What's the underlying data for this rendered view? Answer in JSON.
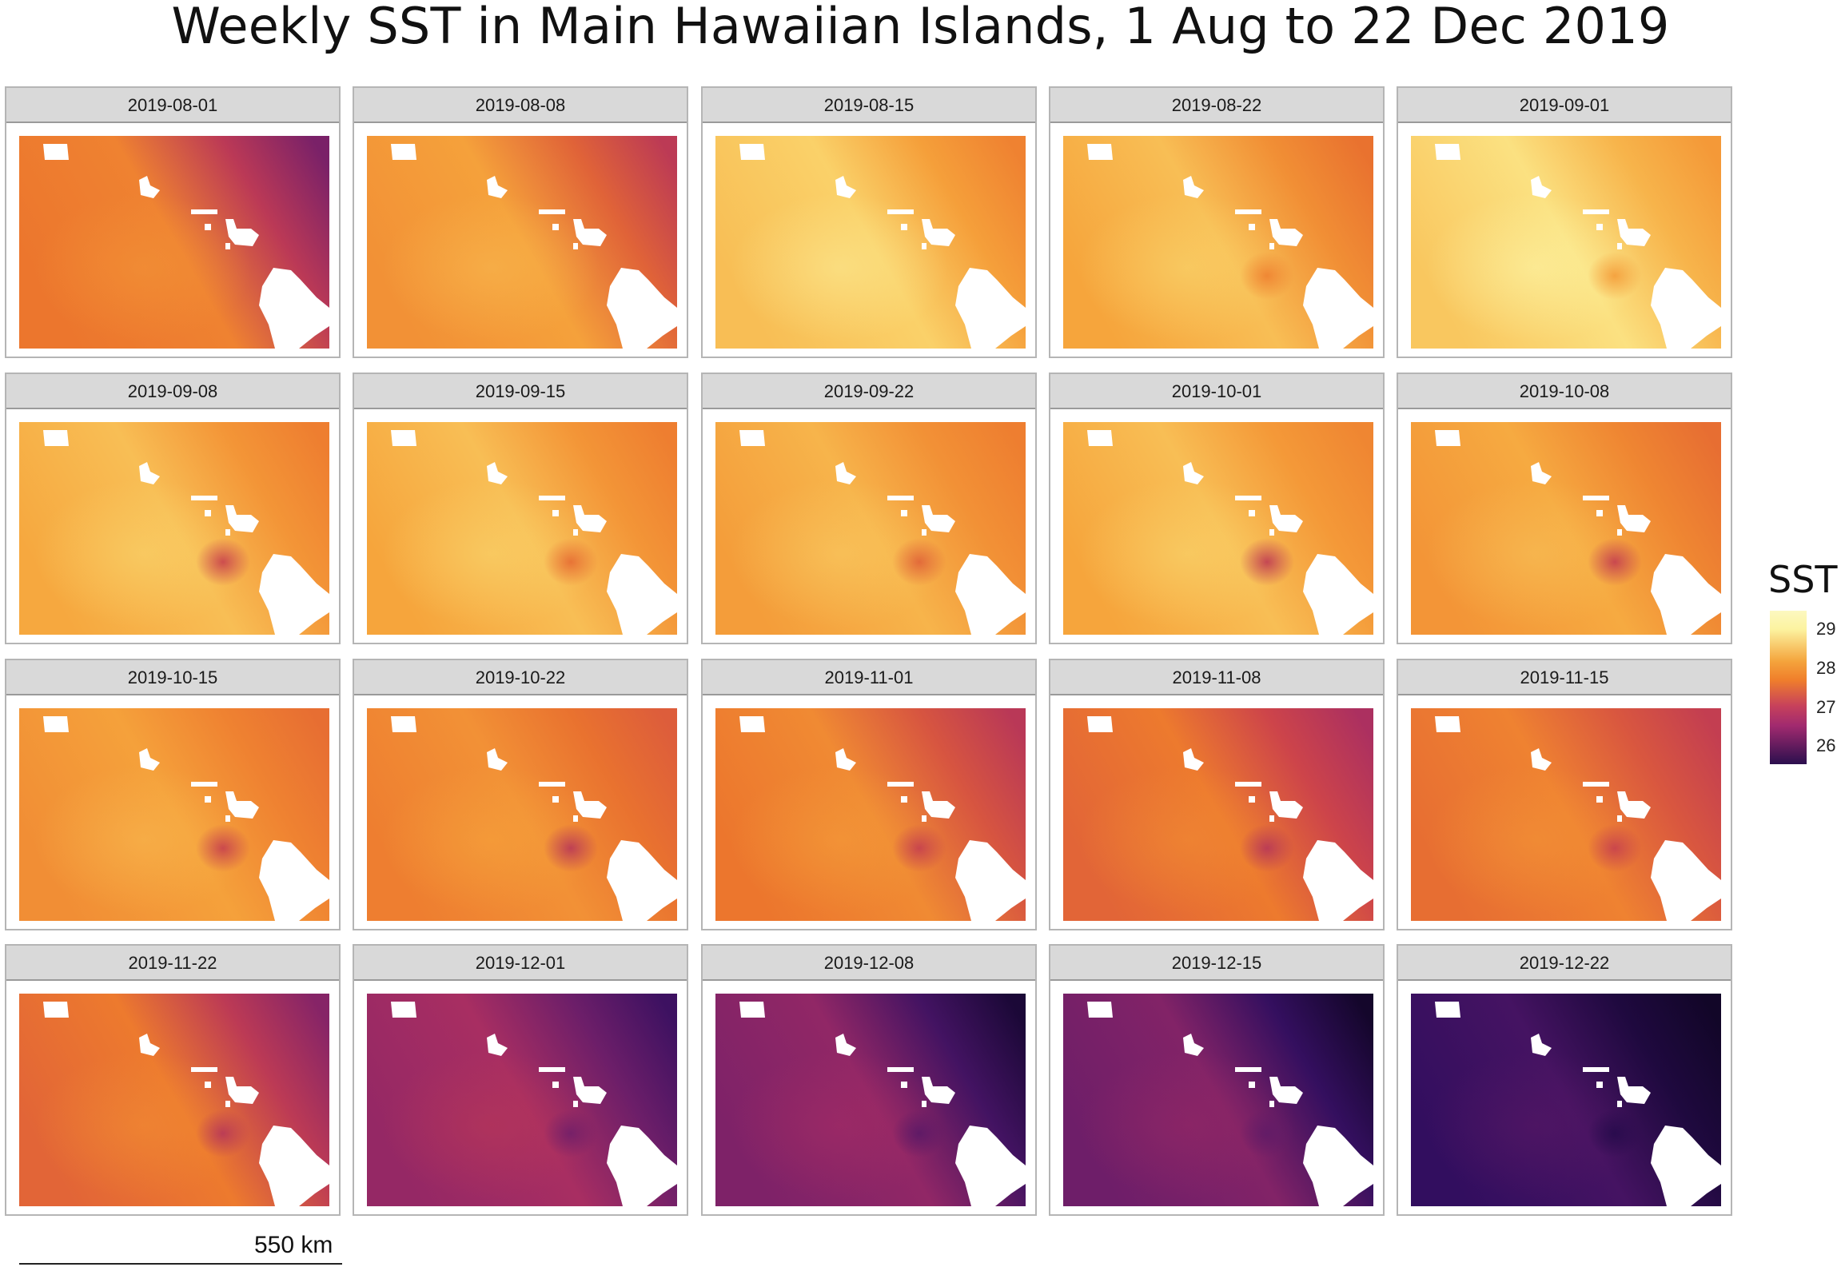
{
  "title": "Weekly SST in Main Hawaiian Islands, 1 Aug to 22 Dec 2019",
  "panels": [
    {
      "label": "2019-08-01",
      "level": 0.72,
      "east": -0.35,
      "south": 0.15,
      "eddy": 0.0
    },
    {
      "label": "2019-08-08",
      "level": 0.8,
      "east": -0.25,
      "south": 0.1,
      "eddy": 0.0
    },
    {
      "label": "2019-08-15",
      "level": 0.9,
      "east": -0.15,
      "south": 0.1,
      "eddy": 0.0
    },
    {
      "label": "2019-08-22",
      "level": 0.86,
      "east": -0.15,
      "south": 0.05,
      "eddy": 0.2
    },
    {
      "label": "2019-09-01",
      "level": 0.93,
      "east": -0.12,
      "south": 0.05,
      "eddy": 0.2
    },
    {
      "label": "2019-09-08",
      "level": 0.86,
      "east": -0.12,
      "south": 0.08,
      "eddy": 0.5
    },
    {
      "label": "2019-09-15",
      "level": 0.86,
      "east": -0.12,
      "south": 0.05,
      "eddy": 0.3
    },
    {
      "label": "2019-09-22",
      "level": 0.84,
      "east": -0.1,
      "south": 0.05,
      "eddy": 0.3
    },
    {
      "label": "2019-10-01",
      "level": 0.86,
      "east": -0.1,
      "south": 0.05,
      "eddy": 0.55
    },
    {
      "label": "2019-10-08",
      "level": 0.82,
      "east": -0.12,
      "south": 0.05,
      "eddy": 0.45
    },
    {
      "label": "2019-10-15",
      "level": 0.8,
      "east": -0.1,
      "south": 0.05,
      "eddy": 0.4
    },
    {
      "label": "2019-10-22",
      "level": 0.76,
      "east": -0.1,
      "south": 0.05,
      "eddy": 0.4
    },
    {
      "label": "2019-11-01",
      "level": 0.74,
      "east": -0.2,
      "south": 0.05,
      "eddy": 0.3
    },
    {
      "label": "2019-11-08",
      "level": 0.7,
      "east": -0.2,
      "south": 0.05,
      "eddy": 0.3
    },
    {
      "label": "2019-11-15",
      "level": 0.72,
      "east": -0.15,
      "south": 0.05,
      "eddy": 0.25
    },
    {
      "label": "2019-11-22",
      "level": 0.7,
      "east": -0.3,
      "south": 0.05,
      "eddy": 0.3
    },
    {
      "label": "2019-12-01",
      "level": 0.46,
      "east": -0.25,
      "south": 0.05,
      "eddy": 0.2
    },
    {
      "label": "2019-12-08",
      "level": 0.4,
      "east": -0.35,
      "south": 0.05,
      "eddy": 0.2
    },
    {
      "label": "2019-12-15",
      "level": 0.36,
      "east": -0.35,
      "south": 0.05,
      "eddy": 0.1
    },
    {
      "label": "2019-12-22",
      "level": 0.2,
      "east": -0.25,
      "south": 0.05,
      "eddy": 0.15
    }
  ],
  "legend": {
    "title": "SST",
    "ticks": [
      "29",
      "28",
      "27",
      "26"
    ],
    "colors": [
      "#fcf3a0",
      "#f07f2b",
      "#a12a6f",
      "#2b0f4e"
    ]
  },
  "scale_bar": {
    "label": "550 km"
  }
}
